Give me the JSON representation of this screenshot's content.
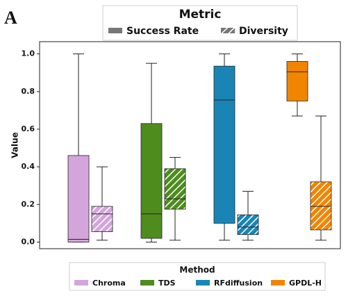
{
  "chart_data": {
    "type": "box",
    "panel_label": "A",
    "ylabel": "Value",
    "ylim": [
      -0.035,
      1.065
    ],
    "yticks": [
      {
        "value": 0,
        "label": "0.0"
      },
      0.2,
      0.4,
      0.6,
      0.8,
      {
        "value": 1,
        "label": "1.0"
      }
    ],
    "series_legend_title": "Metric",
    "category_legend_title": "Method",
    "categories": [
      "Chroma",
      "TDS",
      "RFdiffusion",
      "GPDL-H"
    ],
    "colors": [
      "#d4a5dc",
      "#4e8c1e",
      "#1a85b5",
      "#f28500"
    ],
    "series": [
      {
        "name": "Success Rate",
        "pattern": "solid",
        "legend_color": "#777777",
        "boxes": [
          {
            "min": 0.0,
            "q1": 0.0,
            "median": 0.015,
            "q3": 0.46,
            "max": 1.0
          },
          {
            "min": 0.0,
            "q1": 0.02,
            "median": 0.15,
            "q3": 0.63,
            "max": 0.95
          },
          {
            "min": 0.01,
            "q1": 0.1,
            "median": 0.755,
            "q3": 0.935,
            "max": 1.0
          },
          {
            "min": 0.67,
            "q1": 0.75,
            "median": 0.905,
            "q3": 0.96,
            "max": 1.0
          }
        ]
      },
      {
        "name": "Diversity",
        "pattern": "hatch",
        "legend_color": "#777777",
        "boxes": [
          {
            "min": 0.01,
            "q1": 0.055,
            "median": 0.15,
            "q3": 0.19,
            "max": 0.4
          },
          {
            "min": 0.01,
            "q1": 0.175,
            "median": 0.23,
            "q3": 0.39,
            "max": 0.45
          },
          {
            "min": 0.01,
            "q1": 0.04,
            "median": 0.08,
            "q3": 0.145,
            "max": 0.27
          },
          {
            "min": 0.01,
            "q1": 0.065,
            "median": 0.19,
            "q3": 0.32,
            "max": 0.67
          }
        ]
      }
    ]
  }
}
